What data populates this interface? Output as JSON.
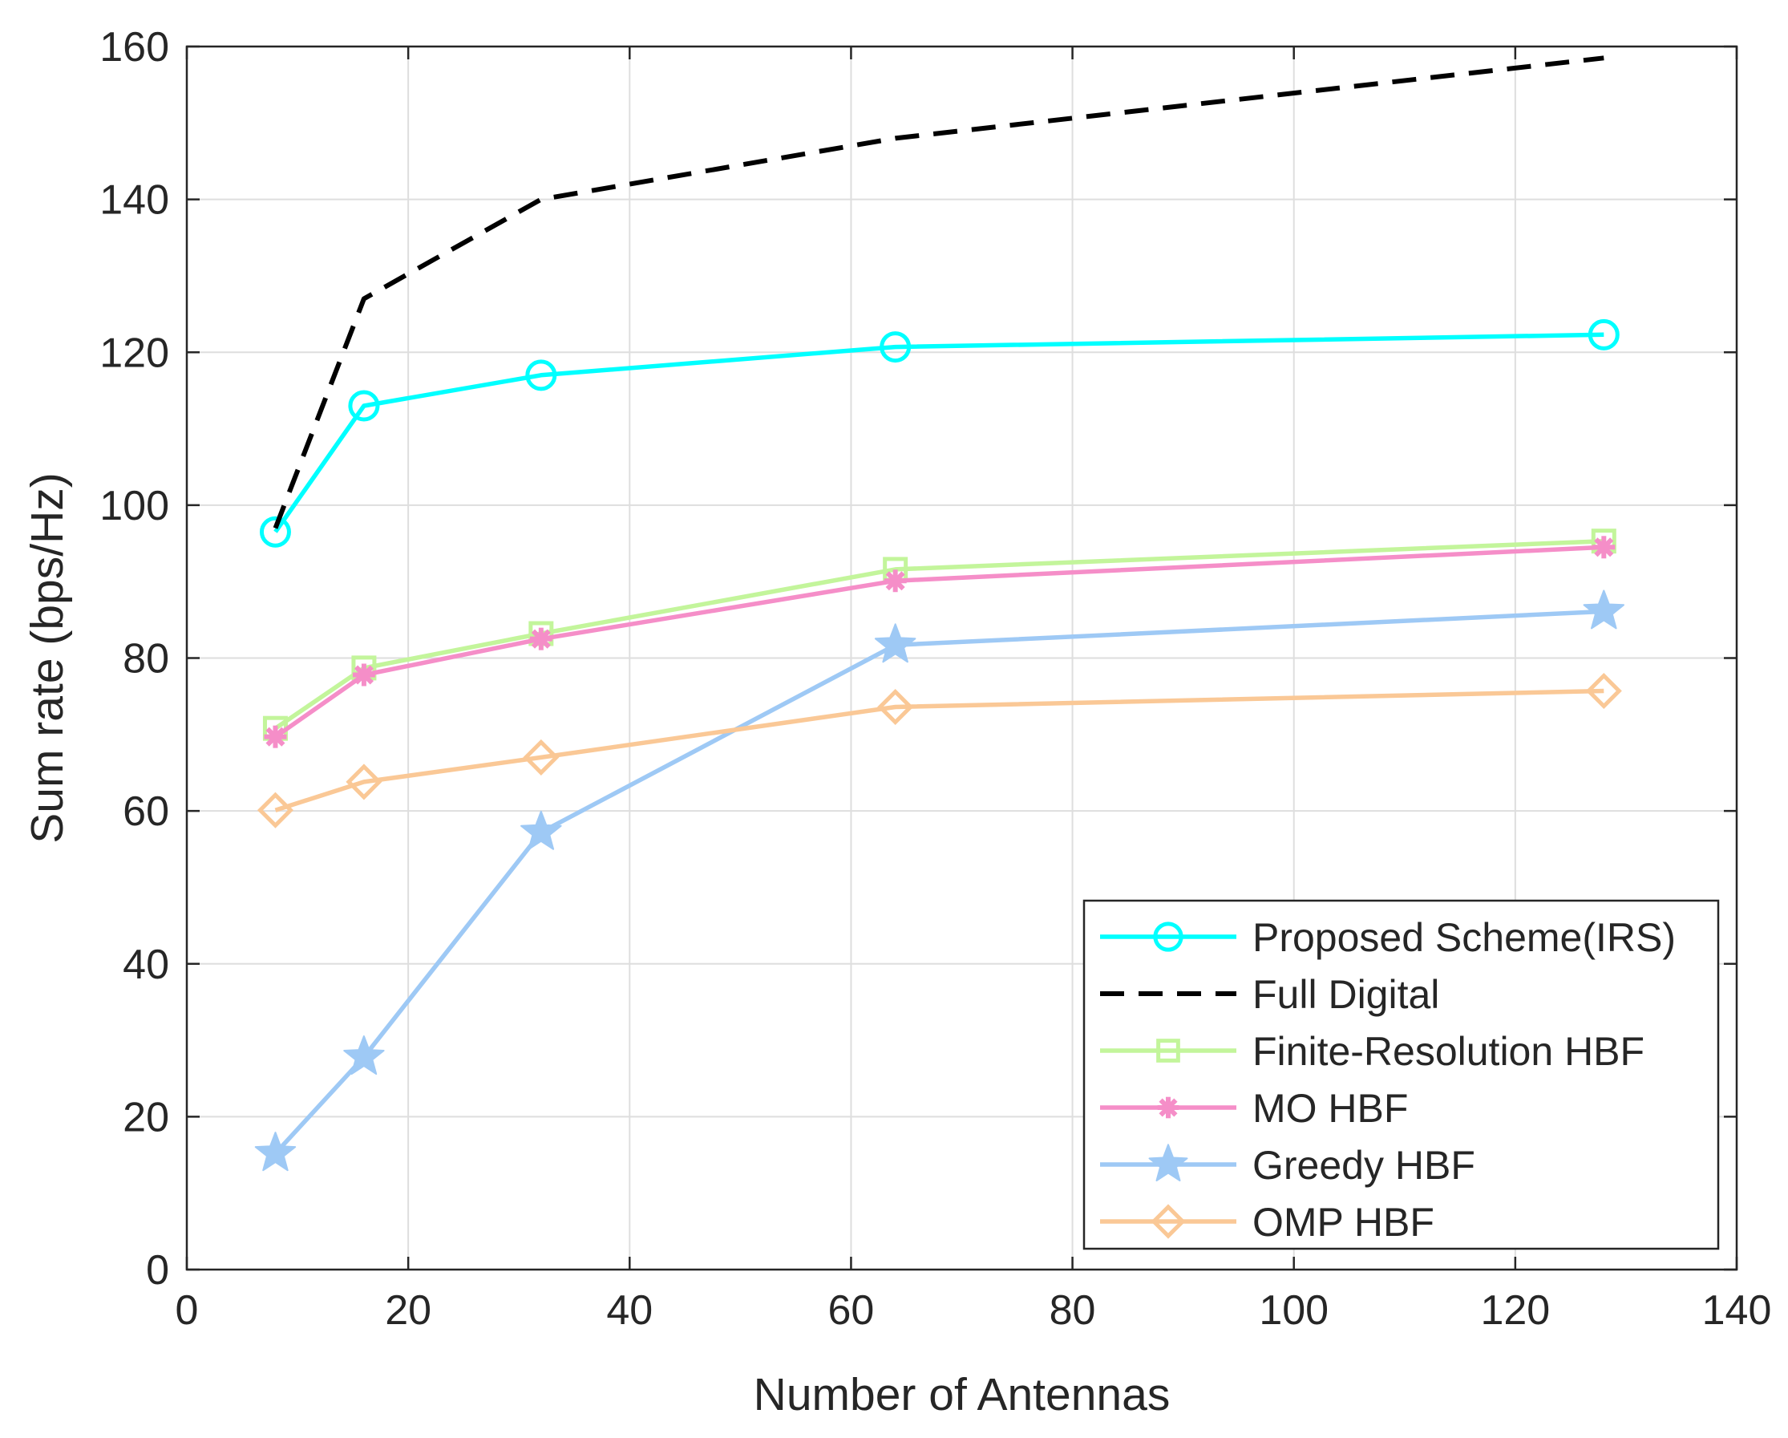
{
  "chart_data": {
    "type": "line",
    "title": "",
    "xlabel": "Number of Antennas",
    "ylabel": "Sum rate (bps/Hz)",
    "xlim": [
      0,
      140
    ],
    "ylim": [
      0,
      160
    ],
    "xticks": [
      0,
      20,
      40,
      60,
      80,
      100,
      120,
      140
    ],
    "yticks": [
      0,
      20,
      40,
      60,
      80,
      100,
      120,
      140,
      160
    ],
    "xtick_labels": [
      "0",
      "20",
      "40",
      "60",
      "80",
      "100",
      "120",
      "140"
    ],
    "ytick_labels": [
      "0",
      "20",
      "40",
      "60",
      "80",
      "100",
      "120",
      "140",
      "160"
    ],
    "grid": true,
    "legend_position": "bottom-right",
    "x": [
      8,
      16,
      32,
      64,
      128
    ],
    "series": [
      {
        "name": "Proposed Scheme(IRS)",
        "color": "#00ffff",
        "marker": "circle",
        "dash": "solid",
        "values": [
          96.5,
          113,
          117,
          120.7,
          122.3
        ]
      },
      {
        "name": "Full Digital",
        "color": "#000000",
        "marker": "none",
        "dash": "dashed",
        "values": [
          97,
          127,
          140,
          148,
          158.5
        ]
      },
      {
        "name": "Finite-Resolution HBF",
        "color": "#c3f59b",
        "marker": "square",
        "dash": "solid",
        "values": [
          70.8,
          78.7,
          83.2,
          91.6,
          95.3
        ]
      },
      {
        "name": "MO HBF",
        "color": "#f58ec8",
        "marker": "asterisk",
        "dash": "solid",
        "values": [
          69.7,
          77.8,
          82.5,
          90.1,
          94.5
        ]
      },
      {
        "name": "Greedy HBF",
        "color": "#9ec9f5",
        "marker": "pentagram",
        "dash": "solid",
        "values": [
          15.2,
          27.8,
          57.2,
          81.7,
          86.1
        ]
      },
      {
        "name": "OMP HBF",
        "color": "#fac896",
        "marker": "diamond",
        "dash": "solid",
        "values": [
          60.1,
          63.8,
          67.0,
          73.6,
          75.7
        ]
      }
    ]
  }
}
